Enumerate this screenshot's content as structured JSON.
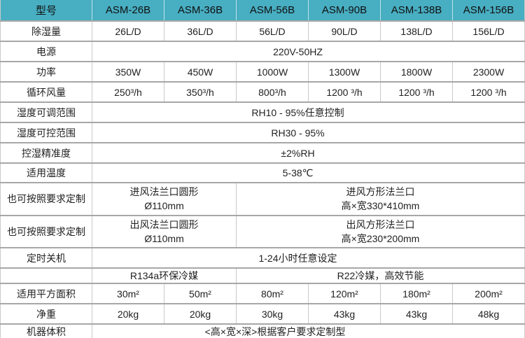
{
  "table": {
    "header": {
      "label": "型号",
      "models": [
        "ASM-26B",
        "ASM-36B",
        "ASM-56B",
        "ASM-90B",
        "ASM-138B",
        "ASM-156B"
      ]
    },
    "rows": [
      {
        "label": "除湿量",
        "cells": [
          "26L/D",
          "36L/D",
          "56L/D",
          "90L/D",
          "138L/D",
          "156L/D"
        ]
      },
      {
        "label": "电源",
        "span": "220V-50HZ"
      },
      {
        "label": "功率",
        "cells": [
          "350W",
          "450W",
          "1000W",
          "1300W",
          "1800W",
          "2300W"
        ]
      },
      {
        "label": "循环风量",
        "cells": [
          "250³/h",
          "350³/h",
          "800³/h",
          "1200 ³/h",
          "1200 ³/h",
          "1200 ³/h"
        ]
      },
      {
        "label": "湿度可调范围",
        "span": "RH10 - 95%任意控制"
      },
      {
        "label": "湿度可控范围",
        "span": "RH30 - 95%"
      },
      {
        "label": "控湿精准度",
        "span": "±2%RH"
      },
      {
        "label": "适用温度",
        "span": "5-38℃"
      },
      {
        "label": "也可按照要求定制",
        "left1": "进风法兰口圆形",
        "left2": "Ø110mm",
        "right1": "进风方形法兰口",
        "right2": "高×宽330*410mm"
      },
      {
        "label": "也可按照要求定制",
        "left1": "出风法兰口圆形",
        "left2": "Ø110mm",
        "right1": "出风方形法兰口",
        "right2": "高×宽230*200mm"
      },
      {
        "label": "定时关机",
        "span": "1-24小时任意设定"
      },
      {
        "label": "",
        "left": "R134a环保冷媒",
        "right": "R22冷媒，高效节能"
      },
      {
        "label": "适用平方面积",
        "cells": [
          "30m²",
          "50m²",
          "80m²",
          "120m²",
          "180m²",
          "200m²"
        ]
      },
      {
        "label": "净重",
        "cells": [
          "20kg",
          "20kg",
          "30kg",
          "43kg",
          "43kg",
          "48kg"
        ]
      },
      {
        "label": "机器体积",
        "span": "<高×宽×深>根据客户要求定制型"
      }
    ],
    "colors": {
      "header_bg": "#48AEC2",
      "header_sep": "#BFE3EA",
      "row_line": "#A7A7A7",
      "cell_line": "#C9C9C9",
      "body_text": "#1F1F1F",
      "bg": "#FFFFFF"
    }
  }
}
